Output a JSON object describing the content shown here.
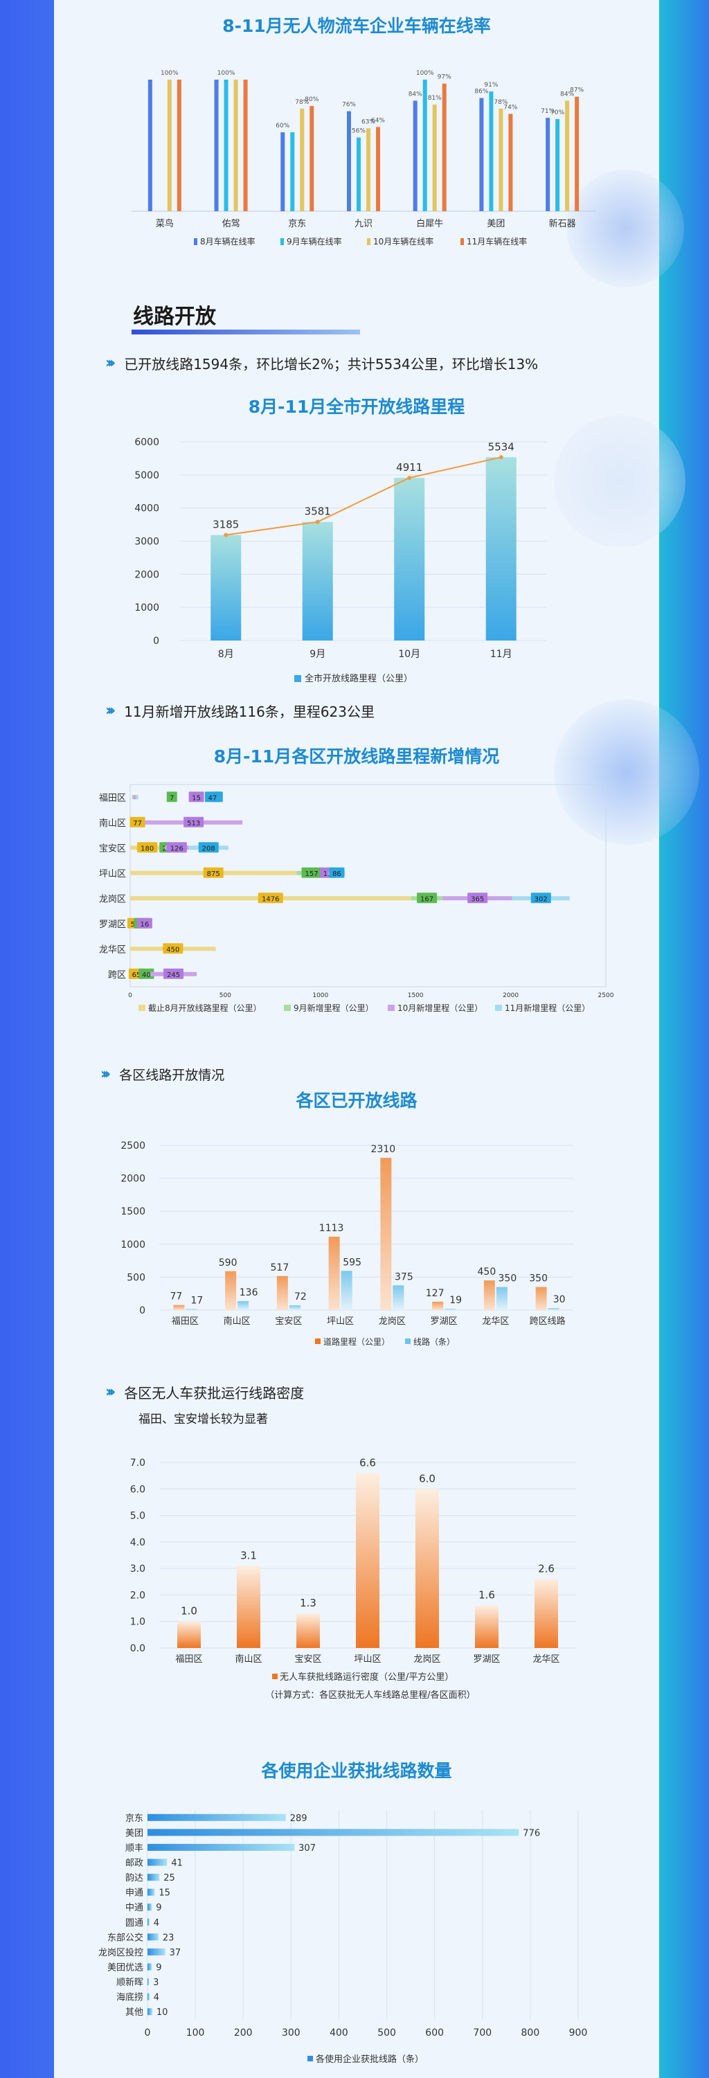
{
  "colors": {
    "c_aug": "#4f7de6",
    "c_sep": "#2bbbe8",
    "c_oct": "#e3c55e",
    "c_nov": "#e97a3f",
    "orange": "#ee7623",
    "blue_light": "#6ac3ea"
  },
  "section_title": "线路开放",
  "bullets": {
    "b1": "已开放线路1594条，环比增长2%；共计5534公里，环比增长13%",
    "b2": "11月新增开放线路116条，里程623公里",
    "b3": "各区线路开放情况",
    "b4": "各区无人车获批运行线路密度",
    "b4_sub": "福田、宝安增长较为显著"
  },
  "charts": [
    {
      "type": "bar",
      "title": "8-11月无人物流车企业车辆在线率",
      "categories": [
        "菜鸟",
        "佑驾",
        "京东",
        "九识",
        "白犀牛",
        "美团",
        "新石器"
      ],
      "series": [
        {
          "name": "8月车辆在线率",
          "values": [
            100,
            100,
            60,
            76,
            84,
            86,
            71
          ],
          "labels": [
            "",
            "",
            "60%",
            "76%",
            "84%",
            "86%",
            "71%"
          ]
        },
        {
          "name": "9月车辆在线率",
          "values": [
            0,
            100,
            60,
            56,
            100,
            91,
            70
          ],
          "labels": [
            "",
            "100%",
            "",
            "56%",
            "100%",
            "91%",
            "70%"
          ]
        },
        {
          "name": "10月车辆在线率",
          "values": [
            100,
            100,
            78,
            63,
            81,
            78,
            84
          ],
          "labels": [
            "100%",
            "",
            "78%",
            "63%",
            "81%",
            "78%",
            "84%"
          ]
        },
        {
          "name": "11月车辆在线率",
          "values": [
            100,
            100,
            80,
            64,
            97,
            74,
            87
          ],
          "labels": [
            "",
            "",
            "80%",
            "64%",
            "97%",
            "74%",
            "87%"
          ]
        }
      ],
      "ylim": [
        0,
        100
      ]
    },
    {
      "type": "bar",
      "title": "8月-11月全市开放线路里程",
      "categories": [
        "8月",
        "9月",
        "10月",
        "11月"
      ],
      "values": [
        3185,
        3581,
        4911,
        5534
      ],
      "line_values": [
        3185,
        3581,
        4911,
        5534
      ],
      "yticks": [
        "0",
        "1000",
        "2000",
        "3000",
        "4000",
        "5000",
        "6000"
      ],
      "ylim": [
        0,
        6000
      ],
      "legend": "全市开放线路里程（公里）"
    },
    {
      "type": "bar",
      "title": "8月-11月各区开放线路里程新增情况",
      "categories": [
        "福田区",
        "南山区",
        "宝安区",
        "坪山区",
        "龙岗区",
        "罗湖区",
        "龙华区",
        "跨区"
      ],
      "series": [
        {
          "name": "截止8月开放线路里程（公里）",
          "values": [
            null,
            77,
            180,
            875,
            1476,
            51,
            450,
            65
          ]
        },
        {
          "name": "9月新增里程（公里）",
          "values": [
            7,
            null,
            2,
            157,
            167,
            17,
            null,
            40
          ]
        },
        {
          "name": "10月新增里程（公里）",
          "values": [
            15,
            513,
            126,
            11,
            365,
            16,
            null,
            245
          ]
        },
        {
          "name": "11月新增里程（公里）",
          "values": [
            8,
            null,
            208,
            86,
            302,
            null,
            null,
            null
          ]
        }
      ],
      "extra_values": [
        47,
        null,
        null,
        null,
        null,
        null,
        null,
        null
      ],
      "xticks": [
        "0",
        "500",
        "1000",
        "1500",
        "2000",
        "2500"
      ],
      "xlim": [
        0,
        2500
      ]
    },
    {
      "type": "bar",
      "title": "各区已开放线路",
      "categories": [
        "福田区",
        "南山区",
        "宝安区",
        "坪山区",
        "龙岗区",
        "罗湖区",
        "龙华区",
        "跨区线路"
      ],
      "series": [
        {
          "name": "道路里程（公里）",
          "values": [
            77,
            590,
            517,
            1113,
            2310,
            127,
            450,
            350
          ]
        },
        {
          "name": "线路（条）",
          "values": [
            17,
            136,
            72,
            595,
            375,
            19,
            350,
            30
          ]
        }
      ],
      "yticks": [
        "0",
        "500",
        "1000",
        "1500",
        "2000",
        "2500"
      ],
      "ylim": [
        0,
        2500
      ]
    },
    {
      "type": "bar",
      "categories": [
        "福田区",
        "南山区",
        "宝安区",
        "坪山区",
        "龙岗区",
        "罗湖区",
        "龙华区"
      ],
      "values": [
        1.0,
        3.1,
        1.3,
        6.6,
        6.0,
        1.6,
        2.6
      ],
      "value_labels": [
        "1.0",
        "3.1",
        "1.3",
        "6.6",
        "6.0",
        "1.6",
        "2.6"
      ],
      "yticks": [
        "0.0",
        "1.0",
        "2.0",
        "3.0",
        "4.0",
        "5.0",
        "6.0",
        "7.0"
      ],
      "ylim": [
        0,
        7
      ],
      "legend": "无人车获批线路运行密度（公里/平方公里）",
      "note": "（计算方式：各区获批无人车线路总里程/各区面积）"
    },
    {
      "type": "bar",
      "title": "各使用企业获批线路数量",
      "categories": [
        "京东",
        "美团",
        "顺丰",
        "邮政",
        "韵达",
        "申通",
        "中通",
        "圆通",
        "东部公交",
        "龙岗区投控",
        "美团优选",
        "顺新晖",
        "海底捞",
        "其他"
      ],
      "values": [
        289,
        776,
        307,
        41,
        25,
        15,
        9,
        4,
        23,
        37,
        9,
        3,
        4,
        10
      ],
      "xticks": [
        "0",
        "100",
        "200",
        "300",
        "400",
        "500",
        "600",
        "700",
        "800",
        "900"
      ],
      "xlim": [
        0,
        900
      ],
      "legend": "各使用企业获批线路（条）"
    }
  ]
}
